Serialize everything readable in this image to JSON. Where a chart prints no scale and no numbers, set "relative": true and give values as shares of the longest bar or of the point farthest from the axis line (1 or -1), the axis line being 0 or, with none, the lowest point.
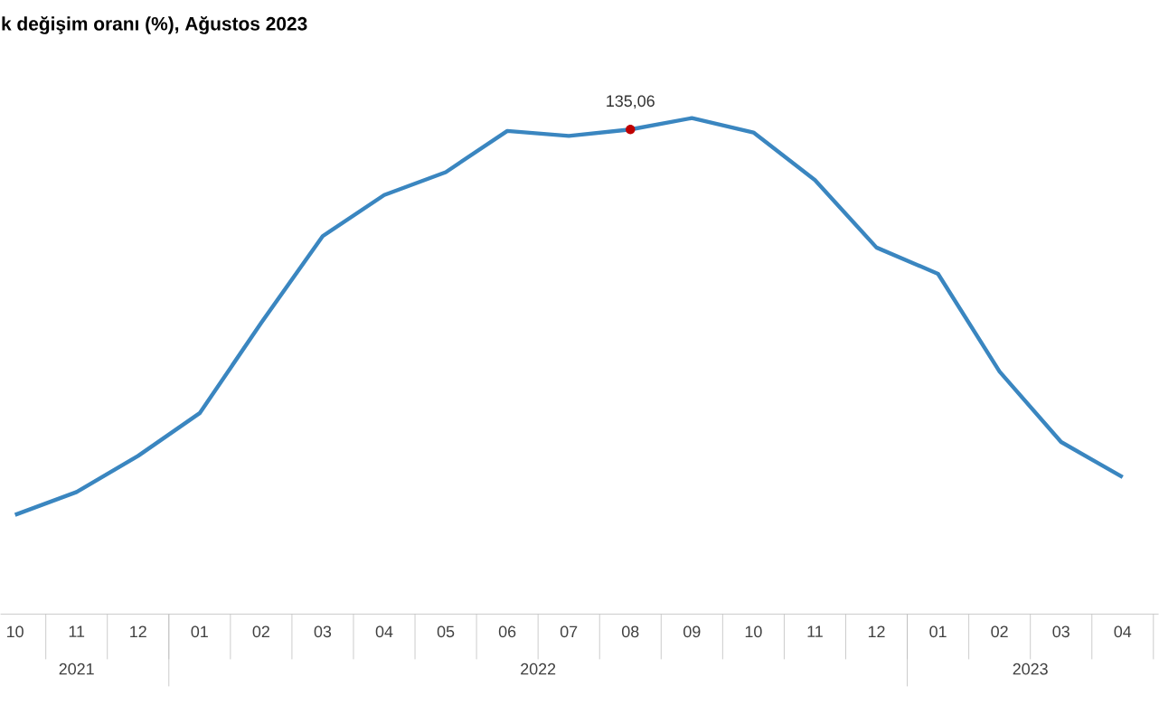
{
  "chart_data": {
    "type": "line",
    "title": "k değişim oranı (%), Ağustos 2023",
    "relative": true,
    "categories": [
      "10",
      "11",
      "12",
      "01",
      "02",
      "03",
      "04",
      "05",
      "06",
      "07",
      "08",
      "09",
      "10",
      "11",
      "12",
      "01",
      "02",
      "03",
      "04"
    ],
    "series": [
      {
        "color": "#3a86c0",
        "values": [
          0.2,
          0.246,
          0.319,
          0.405,
          0.587,
          0.762,
          0.845,
          0.891,
          0.974,
          0.964,
          0.977,
          1,
          0.971,
          0.875,
          0.739,
          0.686,
          0.489,
          0.347,
          0.276
        ]
      }
    ],
    "annotations": [
      {
        "text": "135,06",
        "x": "08",
        "y": 0.977
      },
      "2021",
      "2022",
      "2023"
    ],
    "grid": false,
    "marker": "none",
    "line_style": "solid"
  }
}
